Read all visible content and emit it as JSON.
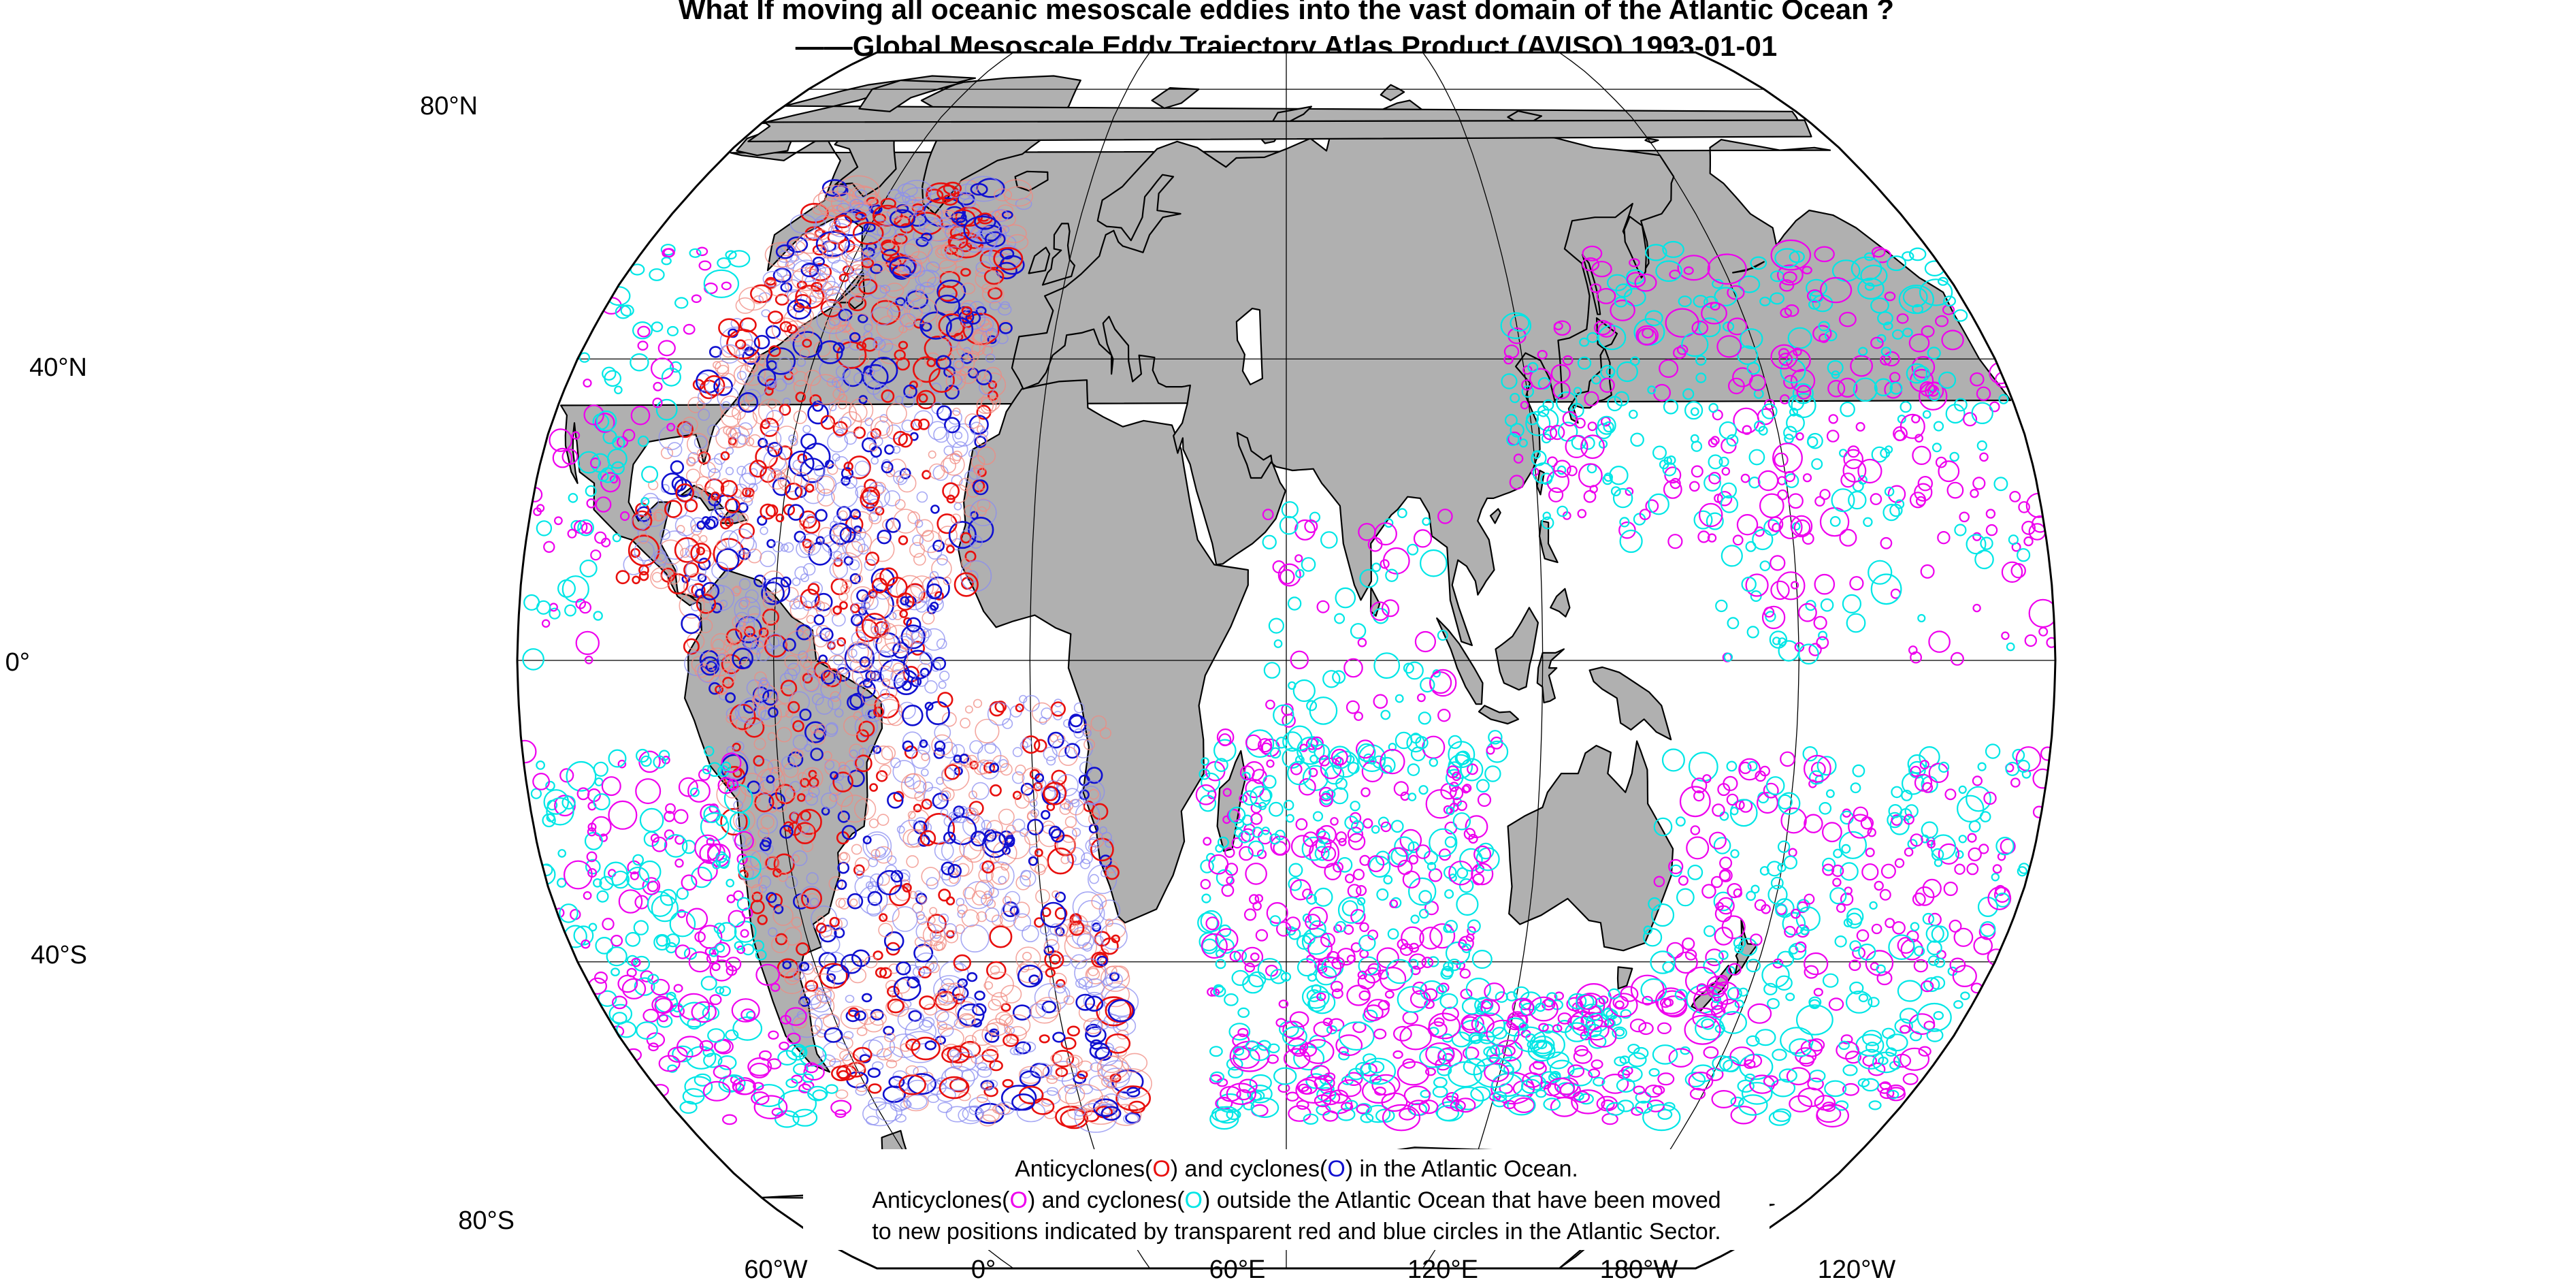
{
  "title": {
    "line1": "What If moving all oceanic mesoscale eddies into the vast domain of the Atlantic Ocean ?",
    "line2": "——Global Mesoscale Eddy Trajectory Atlas Product (AVISO) 1993-01-01"
  },
  "axes": {
    "lat_labels": [
      "80°N",
      "40°N",
      "0°",
      "40°S",
      "80°S"
    ],
    "lon_labels": [
      "60°W",
      "0°",
      "60°E",
      "120°E",
      "180°W",
      "120°W"
    ],
    "projection": "Robinson",
    "central_meridian": "60°E"
  },
  "legend": {
    "line1_part1": "Anticyclones(",
    "line1_part2": ") and cyclones(",
    "line1_part3": ") in the Atlantic Ocean.",
    "line2_part1": "Anticyclones(",
    "line2_part2": ") and cyclones(",
    "line2_part3": ") outside the Atlantic Ocean that have been moved",
    "line3": "to new positions indicated by transparent red and blue circles in the Atlantic Sector.",
    "symbol": "O"
  },
  "colors": {
    "land": "#b0b0b0",
    "ocean": "#ffffff",
    "atlantic_anticyclone": "#e8100e",
    "atlantic_cyclone": "#1010d0",
    "moved_anticyclone": "#f08a80",
    "moved_cyclone": "#8a8cf0",
    "outside_anticyclone": "#ee00ee",
    "outside_cyclone": "#00e6e6"
  }
}
